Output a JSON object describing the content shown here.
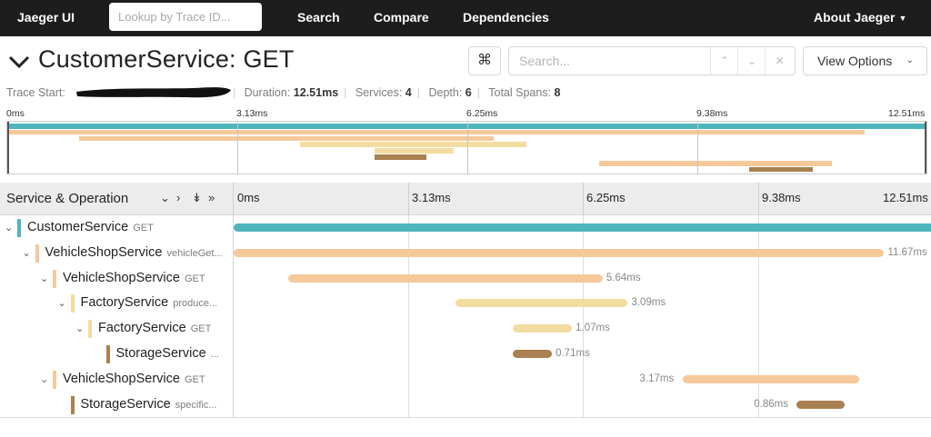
{
  "colors": {
    "customer": "#4fb5bd",
    "vehicle": "#f5c99a",
    "factory": "#f3dca0",
    "storage": "#a9804f"
  },
  "nav": {
    "brand": "Jaeger UI",
    "lookup_placeholder": "Lookup by Trace ID...",
    "links": [
      "Search",
      "Compare",
      "Dependencies"
    ],
    "about": "About Jaeger"
  },
  "trace": {
    "title": "CustomerService: GET",
    "meta": {
      "trace_start_label": "Trace Start:",
      "duration_label": "Duration:",
      "duration": "12.51ms",
      "services_label": "Services:",
      "services": "4",
      "depth_label": "Depth:",
      "depth": "6",
      "total_spans_label": "Total Spans:",
      "total_spans": "8"
    },
    "shortcut_icon": "⌘",
    "search_placeholder": "Search...",
    "view_options": "View Options"
  },
  "minimap": {
    "ticks": [
      "0ms",
      "3.13ms",
      "6.25ms",
      "9.38ms",
      "12.51ms"
    ]
  },
  "timeline": {
    "header_title": "Service & Operation",
    "ticks": [
      "0ms",
      "3.13ms",
      "6.25ms",
      "9.38ms",
      "12.51ms"
    ],
    "total_ms": 12.51
  },
  "spans": [
    {
      "service": "CustomerService",
      "operation": "GET",
      "depth": 0,
      "expandable": true,
      "color": "customer",
      "start_ms": 0.0,
      "duration_ms": 12.51,
      "duration_label": ""
    },
    {
      "service": "VehicleShopService",
      "operation": "vehicleGet...",
      "depth": 1,
      "expandable": true,
      "color": "vehicle",
      "start_ms": 0.0,
      "duration_ms": 11.67,
      "duration_label": "11.67ms"
    },
    {
      "service": "VehicleShopService",
      "operation": "GET",
      "depth": 2,
      "expandable": true,
      "color": "vehicle",
      "start_ms": 0.98,
      "duration_ms": 5.64,
      "duration_label": "5.64ms"
    },
    {
      "service": "FactoryService",
      "operation": "produce...",
      "depth": 3,
      "expandable": true,
      "color": "factory",
      "start_ms": 3.98,
      "duration_ms": 3.09,
      "duration_label": "3.09ms"
    },
    {
      "service": "FactoryService",
      "operation": "GET",
      "depth": 4,
      "expandable": true,
      "color": "factory",
      "start_ms": 5.0,
      "duration_ms": 1.07,
      "duration_label": "1.07ms"
    },
    {
      "service": "StorageService",
      "operation": "...",
      "depth": 5,
      "expandable": false,
      "color": "storage",
      "start_ms": 5.0,
      "duration_ms": 0.71,
      "duration_label": "0.71ms"
    },
    {
      "service": "VehicleShopService",
      "operation": "GET",
      "depth": 2,
      "expandable": true,
      "color": "vehicle",
      "start_ms": 8.05,
      "duration_ms": 3.17,
      "duration_label": "3.17ms"
    },
    {
      "service": "StorageService",
      "operation": "specific...",
      "depth": 3,
      "expandable": false,
      "color": "storage",
      "start_ms": 10.1,
      "duration_ms": 0.86,
      "duration_label": "0.86ms"
    }
  ]
}
